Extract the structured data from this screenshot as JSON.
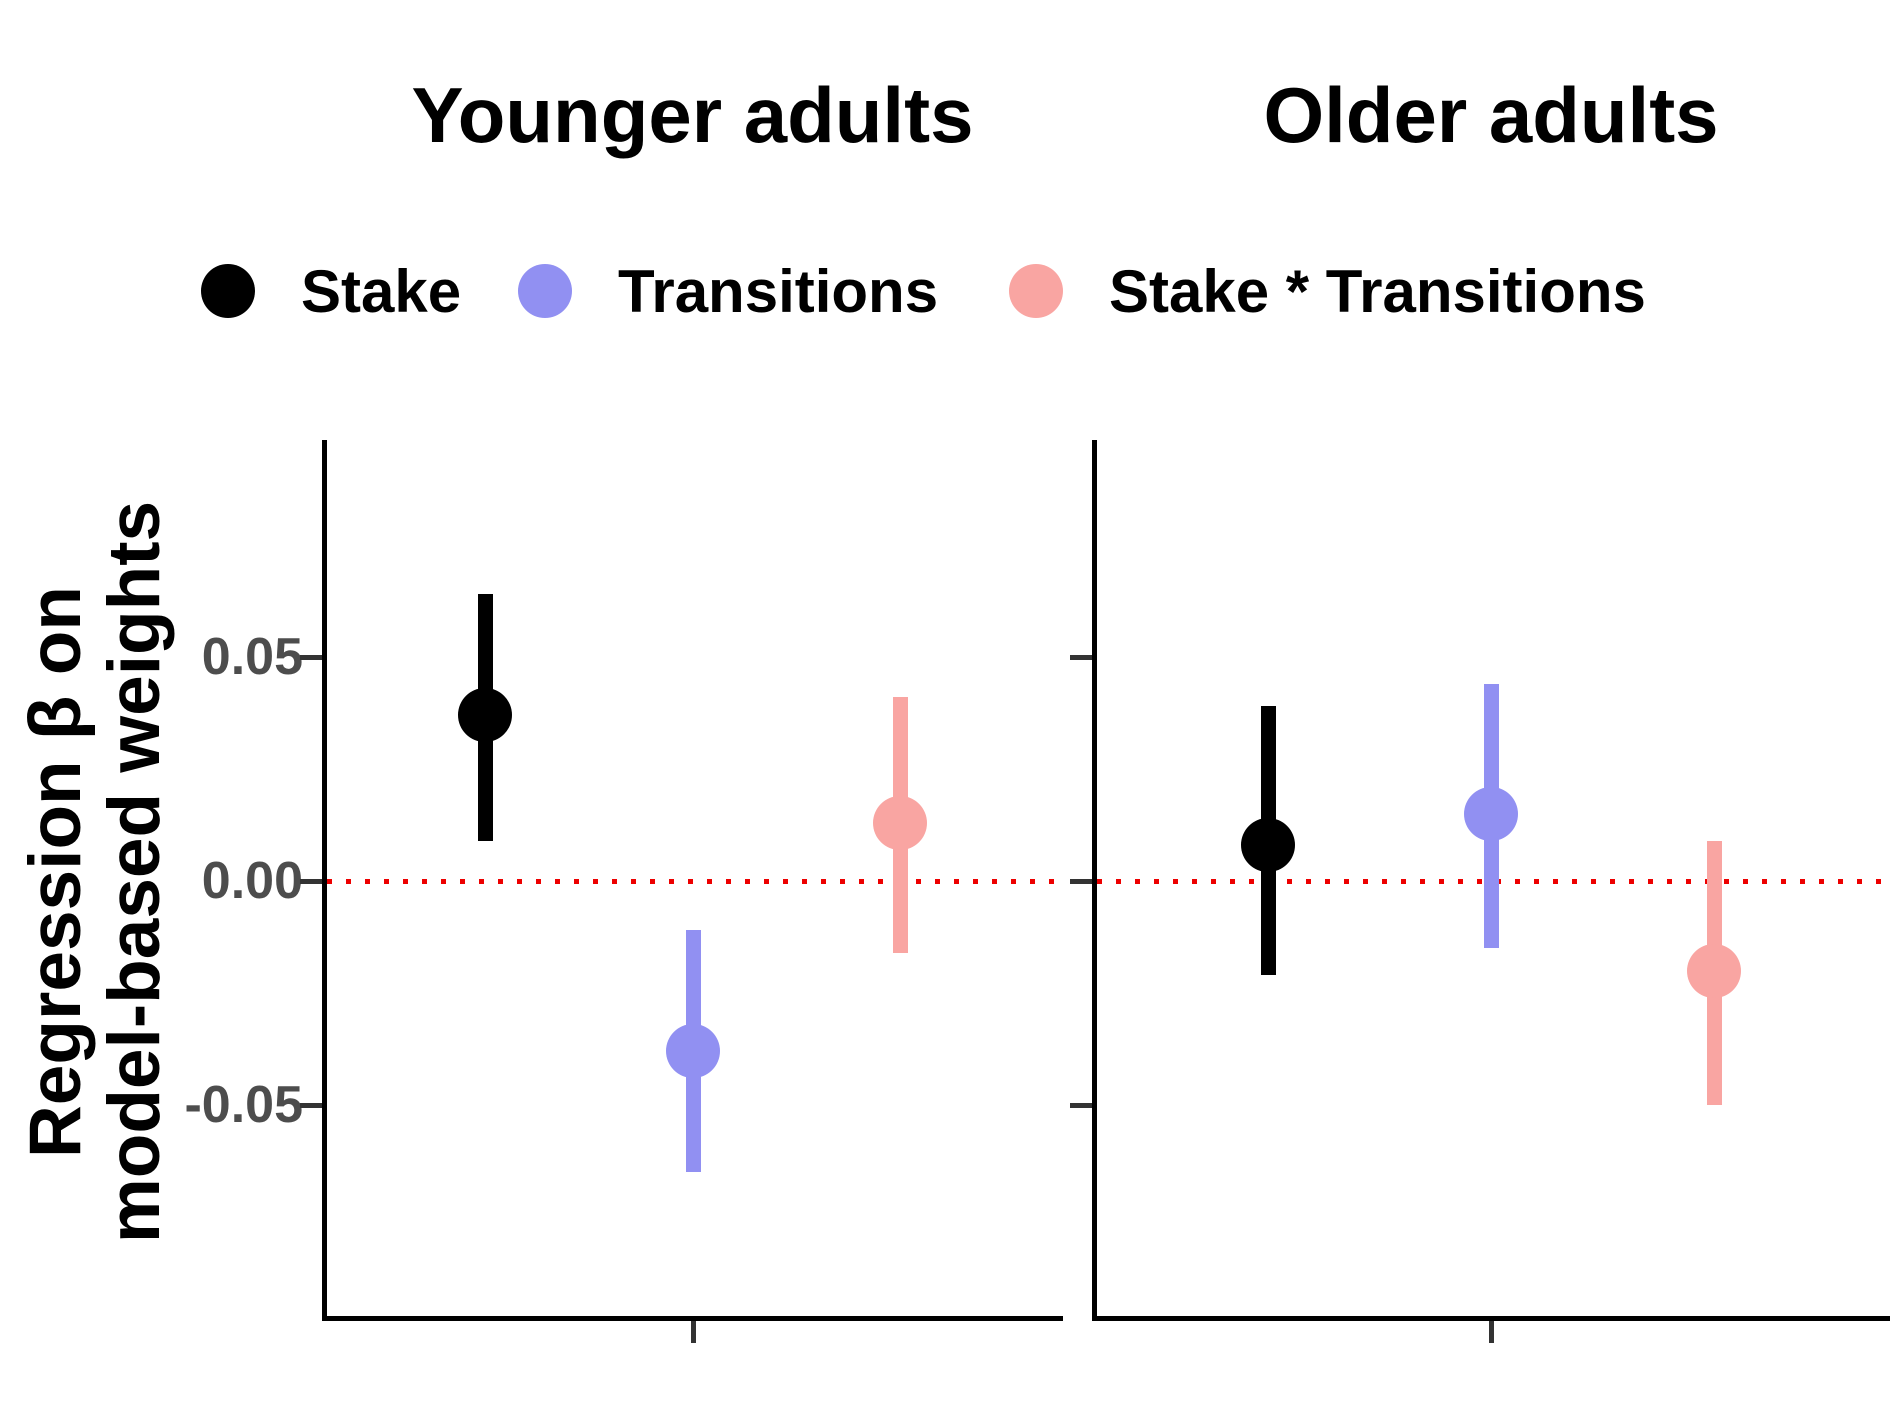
{
  "chart_data": {
    "type": "scatter",
    "subtype": "pointrange-with-ci",
    "facets": "columns",
    "grid": false,
    "legend_position": "top",
    "panels": [
      {
        "title": "Younger adults",
        "points": [
          {
            "series": "Stake",
            "beta": 0.037,
            "ci_low": 0.009,
            "ci_high": 0.064
          },
          {
            "series": "Transitions",
            "beta": -0.038,
            "ci_low": -0.065,
            "ci_high": -0.011
          },
          {
            "series": "Stake * Transitions",
            "beta": 0.013,
            "ci_low": -0.016,
            "ci_high": 0.041
          }
        ]
      },
      {
        "title": "Older adults",
        "points": [
          {
            "series": "Stake",
            "beta": 0.008,
            "ci_low": -0.021,
            "ci_high": 0.039
          },
          {
            "series": "Transitions",
            "beta": 0.015,
            "ci_low": -0.015,
            "ci_high": 0.044
          },
          {
            "series": "Stake * Transitions",
            "beta": -0.02,
            "ci_low": -0.05,
            "ci_high": 0.009
          }
        ]
      }
    ],
    "legend": [
      {
        "label": "Stake",
        "color": "#000000"
      },
      {
        "label": "Transitions",
        "color": "#9190f2"
      },
      {
        "label": "Stake * Transitions",
        "color": "#f9a5a2"
      }
    ],
    "y_axis": {
      "label_line1": "Regression β on",
      "label_line2": "model-based weights",
      "ticks": [
        {
          "label": "0.05",
          "value": 0.05
        },
        {
          "label": "0.00",
          "value": 0.0
        },
        {
          "label": "-0.05",
          "value": -0.05
        }
      ],
      "range": [
        -0.096,
        0.099
      ]
    },
    "x_axis": {
      "tick_labels": [],
      "ticks_per_panel": 1
    },
    "zero_line": {
      "value": 0,
      "color": "#ed0000",
      "style": "dotted"
    },
    "colors": {
      "axis": "#000000",
      "tick_label": "#4d4d4d",
      "background": "#ffffff"
    }
  }
}
